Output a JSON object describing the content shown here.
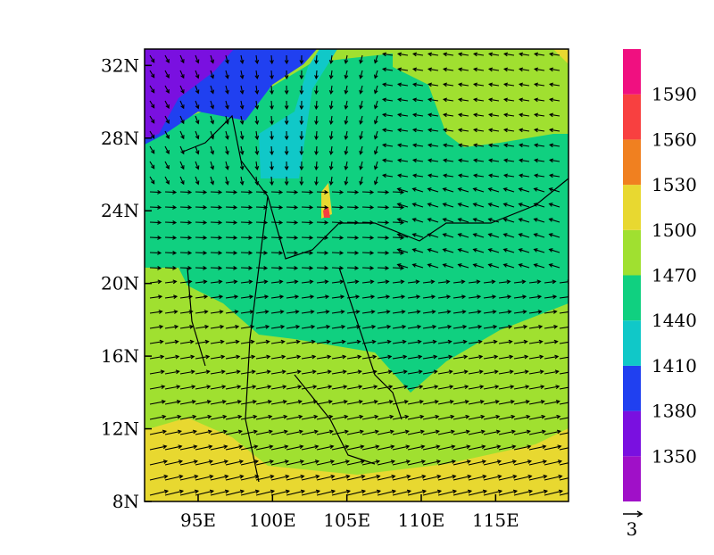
{
  "map": {
    "lonlim": [
      91.4,
      119.9
    ],
    "latlim": [
      8,
      32.9
    ],
    "lon_ticks": [
      {
        "value": 95,
        "label": "95E"
      },
      {
        "value": 100,
        "label": "100E"
      },
      {
        "value": 105,
        "label": "105E"
      },
      {
        "value": 110,
        "label": "110E"
      },
      {
        "value": 115,
        "label": "115E"
      }
    ],
    "lat_ticks": [
      {
        "value": 8,
        "label": "8N"
      },
      {
        "value": 12,
        "label": "12N"
      },
      {
        "value": 16,
        "label": "16N"
      },
      {
        "value": 20,
        "label": "20N"
      },
      {
        "value": 24,
        "label": "24N"
      },
      {
        "value": 28,
        "label": "28N"
      },
      {
        "value": 32,
        "label": "32N"
      }
    ],
    "colorbar": {
      "levels": [
        1350,
        1380,
        1410,
        1440,
        1470,
        1500,
        1530,
        1560,
        1590
      ],
      "colors": [
        "#a010c8",
        "#7a10e0",
        "#2040f0",
        "#10c8c8",
        "#10d080",
        "#a0e030",
        "#e8d830",
        "#f08020",
        "#f84040",
        "#f01080"
      ]
    },
    "reference_vector": 3
  }
}
